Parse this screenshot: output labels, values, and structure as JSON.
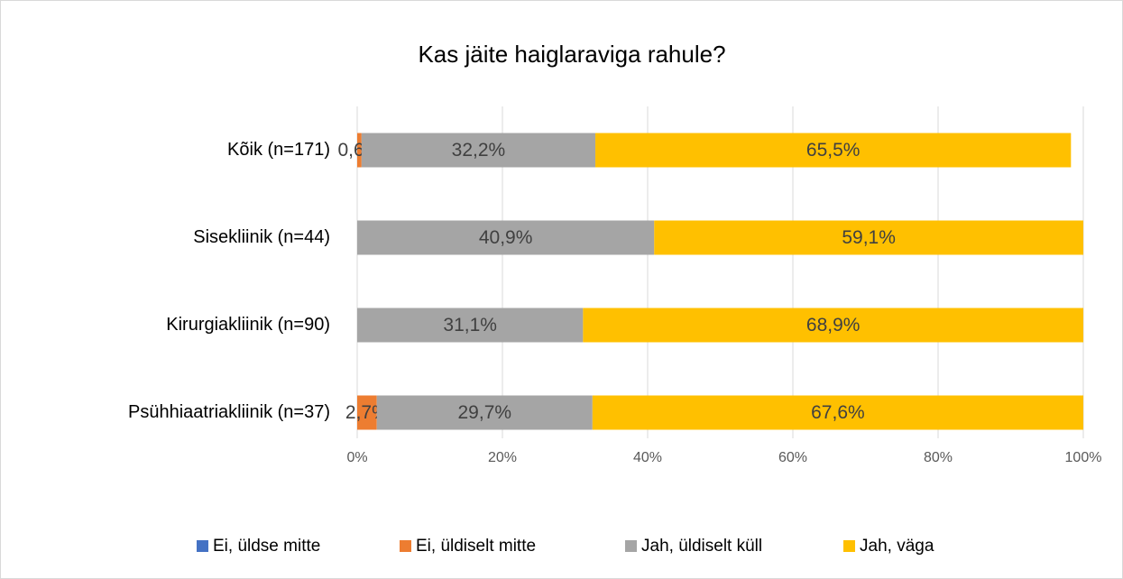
{
  "chart_data": {
    "type": "stacked-bar-horizontal",
    "title": "Kas jäite haiglaraviga rahule?",
    "categories": [
      "Kõik (n=171)",
      "Sisekliinik (n=44)",
      "Kirurgiakliinik (n=90)",
      "Psühhiaatriakliinik (n=37)"
    ],
    "series": [
      {
        "name": "Ei, üldse mitte",
        "color": "#4472c4",
        "values": [
          0,
          0,
          0,
          0
        ],
        "value_labels": [
          null,
          null,
          null,
          null
        ]
      },
      {
        "name": "Ei, üldiselt mitte",
        "color": "#ed7d31",
        "values": [
          0.6,
          0,
          0,
          2.7
        ],
        "value_labels": [
          "0,6%",
          null,
          null,
          "2,7%"
        ]
      },
      {
        "name": "Jah, üldiselt küll",
        "color": "#a5a5a5",
        "values": [
          32.2,
          40.9,
          31.1,
          29.7
        ],
        "value_labels": [
          "32,2%",
          "40,9%",
          "31,1%",
          "29,7%"
        ]
      },
      {
        "name": "Jah, väga",
        "color": "#ffc000",
        "values": [
          65.5,
          59.1,
          68.9,
          67.6
        ],
        "value_labels": [
          "65,5%",
          "59,1%",
          "68,9%",
          "67,6%"
        ]
      }
    ],
    "xlim": [
      0,
      100
    ],
    "xticks": [
      {
        "value": 0,
        "label": "0%"
      },
      {
        "value": 20,
        "label": "20%"
      },
      {
        "value": 40,
        "label": "40%"
      },
      {
        "value": 60,
        "label": "60%"
      },
      {
        "value": 80,
        "label": "80%"
      },
      {
        "value": 100,
        "label": "100%"
      }
    ],
    "grid": true,
    "legend": "bottom"
  }
}
